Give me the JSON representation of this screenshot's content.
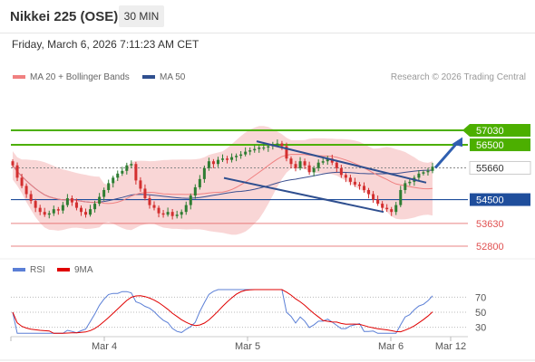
{
  "header": {
    "title": "Nikkei 225 (OSE)",
    "timeframe": "30 MIN",
    "timestamp": "Friday, March 6, 2026 7:11:23 AM CET"
  },
  "legend": {
    "items": [
      {
        "label": "MA 20 + Bollinger Bands",
        "color": "#f08080"
      },
      {
        "label": "MA 50",
        "color": "#2f4f8f"
      }
    ],
    "rsi_items": [
      {
        "label": "RSI",
        "color": "#5b7fd6"
      },
      {
        "label": "9MA",
        "color": "#e00000"
      }
    ],
    "copyright": "Research © 2026 Trading Central"
  },
  "colors": {
    "up": "#2e7d32",
    "down": "#d32f2f",
    "resistance": "#4caf00",
    "pivot": "#1f4e9c",
    "support": "#e05050",
    "bollinger": "#f7c8c8",
    "ma20": "#f08080",
    "ma50": "#3b4f8f",
    "trend": "#2f4f8f",
    "rsi": "#5b7fd6",
    "rsi_ma": "#e00000"
  },
  "chart_data": [
    {
      "type": "candlestick",
      "title": "Nikkei 225 (OSE)",
      "x_labels": [
        "Mar 4",
        "Mar 5",
        "Mar 6",
        "Mar 12"
      ],
      "ylim": [
        52500,
        57500
      ],
      "levels": [
        {
          "value": 57030,
          "label": "57030",
          "kind": "resistance"
        },
        {
          "value": 56500,
          "label": "56500",
          "kind": "resistance"
        },
        {
          "value": 55660,
          "label": "55660",
          "kind": "last"
        },
        {
          "value": 54500,
          "label": "54500",
          "kind": "pivot"
        },
        {
          "value": 53630,
          "label": "53630",
          "kind": "support"
        },
        {
          "value": 52800,
          "label": "52800",
          "kind": "support"
        }
      ],
      "close": [
        55750,
        55300,
        55000,
        54700,
        54450,
        54200,
        54050,
        53950,
        54000,
        54150,
        54100,
        54300,
        54550,
        54400,
        54200,
        54050,
        53950,
        54150,
        54350,
        54600,
        54850,
        55100,
        55300,
        55450,
        55550,
        55750,
        55800,
        55200,
        54900,
        54550,
        54300,
        54200,
        54000,
        53950,
        54050,
        53900,
        53950,
        54050,
        54300,
        54650,
        54950,
        55250,
        55650,
        55900,
        55800,
        55950,
        56000,
        55950,
        56050,
        56100,
        56150,
        56250,
        56300,
        56350,
        56400,
        56400,
        56450,
        56500,
        56550,
        56450,
        56000,
        55800,
        55650,
        55900,
        55750,
        55500,
        55650,
        55850,
        55900,
        56000,
        55850,
        55650,
        55400,
        55300,
        55150,
        55050,
        55000,
        54850,
        54700,
        54500,
        54350,
        54200,
        54150,
        54050,
        54300,
        54850,
        55100,
        55150,
        55300,
        55450,
        55500,
        55550,
        55700
      ]
    },
    {
      "type": "line",
      "title": "RSI",
      "series": [
        {
          "name": "RSI"
        },
        {
          "name": "9MA"
        }
      ],
      "ticks": [
        70,
        50,
        30
      ],
      "ylim": [
        0,
        100
      ]
    }
  ]
}
